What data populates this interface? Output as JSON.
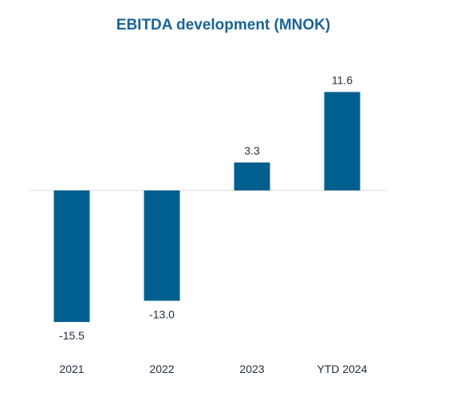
{
  "chart_data": {
    "type": "bar",
    "title": "EBITDA development (MNOK)",
    "categories": [
      "2021",
      "2022",
      "2023",
      "YTD 2024"
    ],
    "values": [
      -15.5,
      -13.0,
      3.3,
      11.6
    ],
    "value_labels": [
      "-15.5",
      "-13.0",
      "3.3",
      "11.6"
    ],
    "xlabel": "",
    "ylabel": "",
    "ylim": [
      -18,
      13
    ],
    "grid": false,
    "legend": "none",
    "bar_color": "#005F8F",
    "title_color": "#1A6496"
  }
}
